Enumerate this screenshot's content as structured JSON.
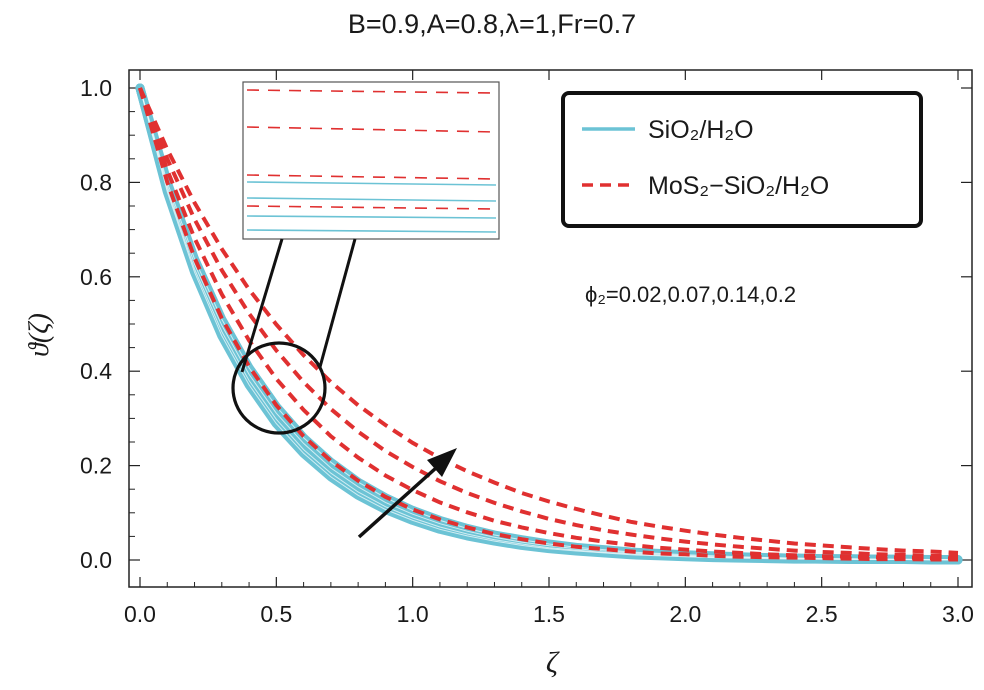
{
  "chart_data": {
    "type": "line",
    "title": "B=0.9,A=0.8,λ=1,Fr=0.7",
    "xlabel": "ζ",
    "ylabel": "ϑ(ζ)",
    "xlim": [
      0,
      3
    ],
    "ylim": [
      0,
      1
    ],
    "x_ticks": [
      "0.0",
      "0.5",
      "1.0",
      "1.5",
      "2.0",
      "2.5",
      "3.0"
    ],
    "y_ticks": [
      "0.0",
      "0.2",
      "0.4",
      "0.6",
      "0.8",
      "1.0"
    ],
    "legend": {
      "position": "top-right",
      "entries": [
        {
          "label": "SiO₂/H₂O",
          "style": "solid",
          "color": "#6cc3d5"
        },
        {
          "label": "MoS₂−SiO₂/H₂O",
          "style": "dashed",
          "color": "#e03030"
        }
      ]
    },
    "annotation": "ϕ₂=0.02,0.07,0.14,0.2",
    "parameter_values": [
      0.02,
      0.07,
      0.14,
      0.2
    ],
    "x": [
      0,
      0.1,
      0.2,
      0.3,
      0.4,
      0.5,
      0.6,
      0.7,
      0.8,
      0.9,
      1.0,
      1.1,
      1.2,
      1.3,
      1.4,
      1.5,
      1.6,
      1.7,
      1.8,
      1.9,
      2.0,
      2.1,
      2.2,
      2.3,
      2.4,
      2.5,
      2.6,
      2.7,
      2.8,
      2.9,
      3.0
    ],
    "series": [
      {
        "name": "SiO₂/H₂O, ϕ₂=0.02",
        "group": "SiO2/H2O",
        "values": [
          1.0,
          0.78,
          0.61,
          0.475,
          0.371,
          0.289,
          0.226,
          0.176,
          0.137,
          0.107,
          0.084,
          0.065,
          0.051,
          0.04,
          0.031,
          0.024,
          0.019,
          0.015,
          0.011,
          0.009,
          0.007,
          0.005,
          0.004,
          0.003,
          0.002,
          0.002,
          0.001,
          0.001,
          0.001,
          0.0,
          0.0
        ]
      },
      {
        "name": "SiO₂/H₂O, ϕ₂=0.07",
        "group": "SiO2/H2O",
        "values": [
          1.0,
          0.785,
          0.617,
          0.484,
          0.38,
          0.298,
          0.234,
          0.184,
          0.144,
          0.113,
          0.089,
          0.07,
          0.055,
          0.043,
          0.034,
          0.026,
          0.021,
          0.016,
          0.013,
          0.01,
          0.008,
          0.006,
          0.005,
          0.004,
          0.003,
          0.002,
          0.002,
          0.001,
          0.001,
          0.001,
          0.0
        ]
      },
      {
        "name": "SiO₂/H₂O, ϕ₂=0.14",
        "group": "SiO2/H2O",
        "values": [
          1.0,
          0.792,
          0.627,
          0.497,
          0.393,
          0.311,
          0.247,
          0.195,
          0.155,
          0.122,
          0.097,
          0.077,
          0.061,
          0.048,
          0.038,
          0.03,
          0.024,
          0.019,
          0.015,
          0.012,
          0.009,
          0.007,
          0.006,
          0.005,
          0.004,
          0.003,
          0.002,
          0.002,
          0.001,
          0.001,
          0.001
        ]
      },
      {
        "name": "SiO₂/H₂O, ϕ₂=0.2",
        "group": "SiO2/H2O",
        "values": [
          1.0,
          0.8,
          0.638,
          0.51,
          0.407,
          0.325,
          0.259,
          0.207,
          0.165,
          0.132,
          0.105,
          0.084,
          0.067,
          0.053,
          0.043,
          0.034,
          0.027,
          0.022,
          0.017,
          0.014,
          0.011,
          0.009,
          0.007,
          0.005,
          0.004,
          0.003,
          0.003,
          0.002,
          0.002,
          0.001,
          0.001
        ]
      },
      {
        "name": "MoS₂−SiO₂/H₂O, ϕ₂=0.02",
        "group": "MoS2-SiO2/H2O",
        "values": [
          1.0,
          0.8,
          0.64,
          0.512,
          0.41,
          0.328,
          0.262,
          0.21,
          0.168,
          0.134,
          0.107,
          0.086,
          0.069,
          0.055,
          0.044,
          0.035,
          0.028,
          0.023,
          0.018,
          0.014,
          0.012,
          0.009,
          0.007,
          0.006,
          0.005,
          0.004,
          0.003,
          0.002,
          0.002,
          0.001,
          0.001
        ]
      },
      {
        "name": "MoS₂−SiO₂/H₂O, ϕ₂=0.07",
        "group": "MoS2-SiO2/H2O",
        "values": [
          1.0,
          0.826,
          0.682,
          0.563,
          0.465,
          0.384,
          0.318,
          0.262,
          0.217,
          0.179,
          0.148,
          0.122,
          0.101,
          0.083,
          0.069,
          0.057,
          0.047,
          0.039,
          0.032,
          0.026,
          0.022,
          0.018,
          0.015,
          0.012,
          0.01,
          0.008,
          0.007,
          0.006,
          0.005,
          0.004,
          0.003
        ]
      },
      {
        "name": "MoS₂−SiO₂/H₂O, ϕ₂=0.14",
        "group": "MoS2-SiO2/H2O",
        "values": [
          1.0,
          0.85,
          0.722,
          0.614,
          0.522,
          0.444,
          0.377,
          0.32,
          0.272,
          0.231,
          0.197,
          0.167,
          0.142,
          0.121,
          0.103,
          0.087,
          0.074,
          0.063,
          0.054,
          0.046,
          0.039,
          0.033,
          0.028,
          0.024,
          0.02,
          0.017,
          0.015,
          0.012,
          0.011,
          0.009,
          0.008
        ]
      },
      {
        "name": "MoS₂−SiO₂/H₂O, ϕ₂=0.2",
        "group": "MoS2-SiO2/H2O",
        "values": [
          1.0,
          0.87,
          0.757,
          0.659,
          0.573,
          0.499,
          0.434,
          0.377,
          0.328,
          0.286,
          0.248,
          0.216,
          0.188,
          0.164,
          0.142,
          0.124,
          0.108,
          0.094,
          0.081,
          0.071,
          0.062,
          0.054,
          0.047,
          0.041,
          0.035,
          0.031,
          0.027,
          0.023,
          0.02,
          0.018,
          0.015
        ]
      }
    ]
  }
}
